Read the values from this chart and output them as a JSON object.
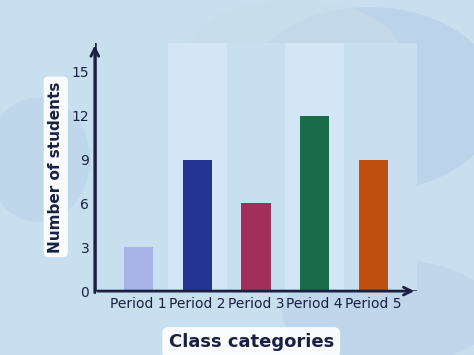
{
  "categories": [
    "Period 1",
    "Period 2",
    "Period 3",
    "Period 4",
    "Period 5"
  ],
  "values": [
    3,
    9,
    6,
    12,
    9
  ],
  "bar_colors": [
    "#a8b4e8",
    "#253494",
    "#a0305a",
    "#1a6b4a",
    "#c05010"
  ],
  "ylabel": "Number of students",
  "xlabel": "Class categories",
  "yticks": [
    0,
    3,
    6,
    9,
    12,
    15
  ],
  "ylim": [
    0,
    17
  ],
  "background_color": "#c8dff0",
  "wave_color": "#b8d4ec",
  "bar_width": 0.5,
  "ylabel_fontsize": 11,
  "xlabel_fontsize": 13,
  "tick_fontsize": 10,
  "axis_color": "#1a2040",
  "text_color": "#1a2040"
}
